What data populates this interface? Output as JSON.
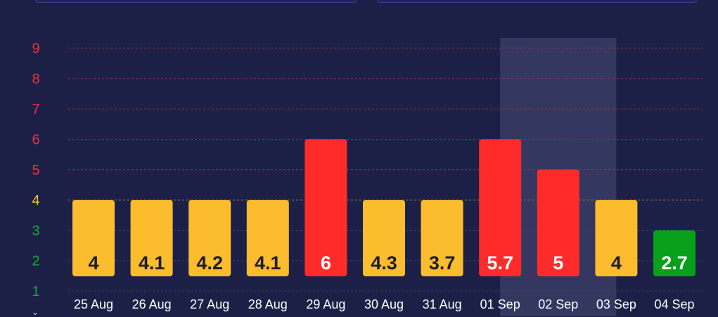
{
  "chart_data": {
    "type": "bar",
    "categories": [
      "25 Aug",
      "26 Aug",
      "27 Aug",
      "28 Aug",
      "29 Aug",
      "30 Aug",
      "31 Aug",
      "01 Sep",
      "02 Sep",
      "03 Sep",
      "04 Sep"
    ],
    "values": [
      4,
      4.1,
      4.2,
      4.1,
      6,
      4.3,
      3.7,
      5.7,
      5,
      4,
      2.7
    ],
    "bar_levels": [
      4,
      4,
      4,
      4,
      6,
      4,
      4,
      6,
      5,
      4,
      3
    ],
    "bar_colors": [
      "#fbbc2d",
      "#fbbc2d",
      "#fbbc2d",
      "#fbbc2d",
      "#ff2b2b",
      "#fbbc2d",
      "#fbbc2d",
      "#ff2b2b",
      "#ff2b2b",
      "#fbbc2d",
      "#08a01a"
    ],
    "label_colors": [
      "#1c1c2a",
      "#1c1c2a",
      "#1c1c2a",
      "#1c1c2a",
      "#ffffff",
      "#1c1c2a",
      "#1c1c2a",
      "#ffffff",
      "#ffffff",
      "#1c1c2a",
      "#ffffff"
    ],
    "y_ticks": [
      "1",
      "2",
      "3",
      "4",
      "5",
      "6",
      "7",
      "8",
      "9"
    ],
    "y_tick_colors": [
      "#12a83a",
      "#12a83a",
      "#12a83a",
      "#f0c23a",
      "#e8323c",
      "#e8323c",
      "#e8323c",
      "#e8323c",
      "#e8323c"
    ],
    "ylim": [
      1,
      9
    ],
    "highlight_category": "02 Sep",
    "grid": true,
    "title": "",
    "xlabel": "",
    "ylabel": ""
  },
  "colors": {
    "background": "#1c2046",
    "grid_red": "#a8343e",
    "grid_yellow": "#8c7a3a",
    "grid_dim": "#3a3f6a",
    "axis_label": "#ffffff",
    "highlight": "#343760"
  }
}
